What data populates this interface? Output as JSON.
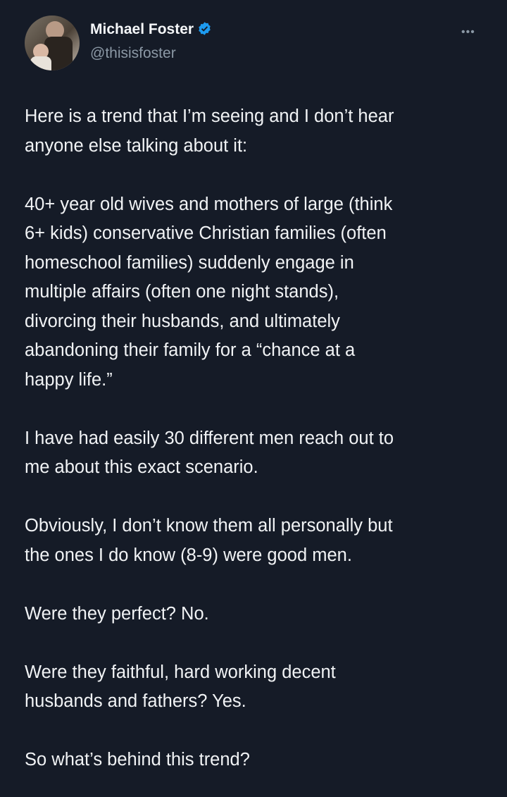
{
  "author": {
    "name": "Michael Foster",
    "handle": "@thisisfoster",
    "verified": true,
    "badge_color": "#1d9bf0"
  },
  "more_icon": "ellipsis-icon",
  "tweet_lines": [
    "Here is a trend that I’m seeing and I don’t hear",
    "anyone else talking about it:",
    "",
    "40+ year old wives and mothers of large (think",
    "6+ kids) conservative Christian families (often",
    "homeschool families) suddenly engage in",
    "multiple affairs (often one night stands),",
    "divorcing their husbands, and ultimately",
    "abandoning their family for a “chance at a",
    "happy life.”",
    "",
    "I have had easily 30 different men reach out to",
    "me about this exact scenario.",
    "",
    "Obviously, I don’t know them all personally but",
    "the ones I do know (8-9) were good men.",
    "",
    "Were they perfect? No.",
    "",
    "Were they faithful, hard working decent",
    "husbands and fathers? Yes.",
    "",
    "So what’s behind this trend?"
  ]
}
